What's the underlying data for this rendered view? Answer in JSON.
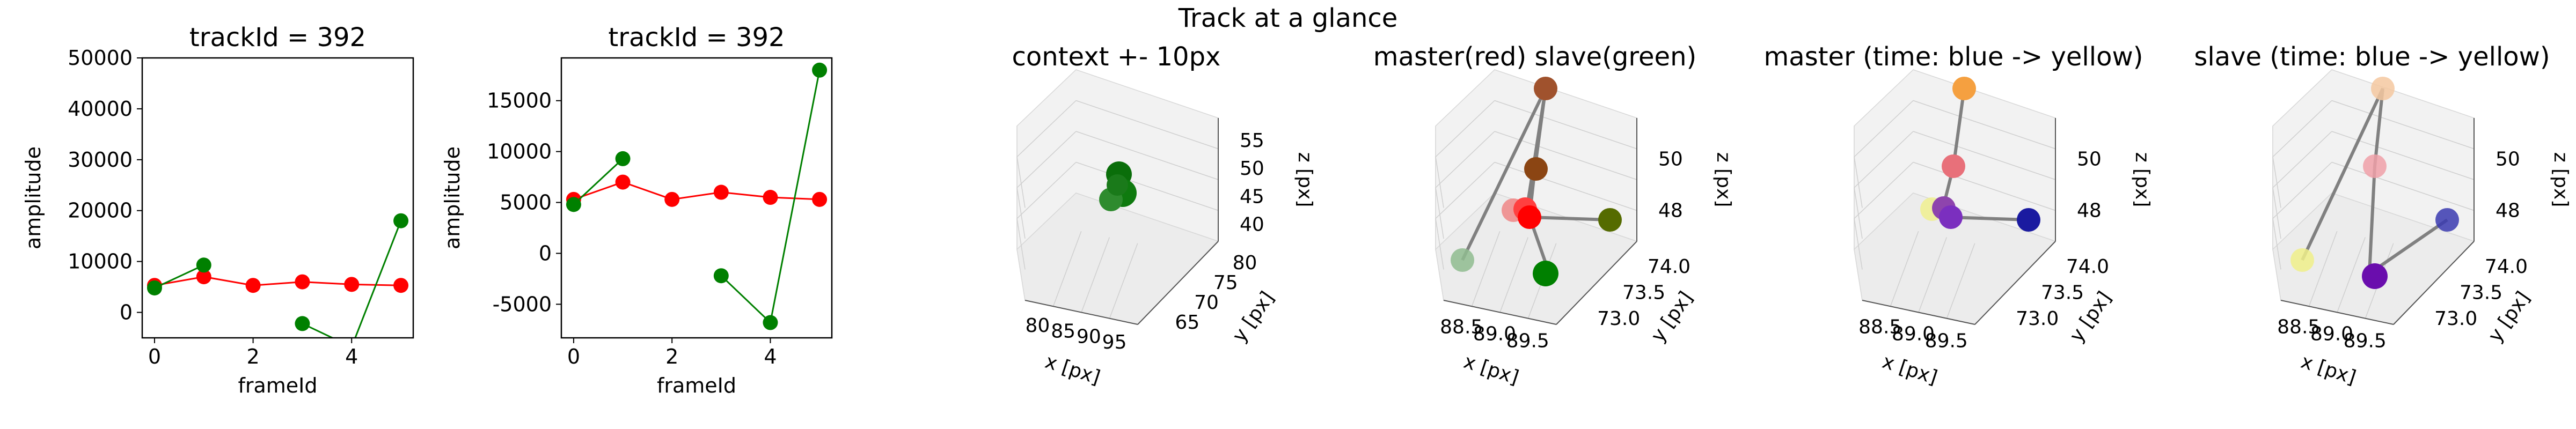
{
  "figure": {
    "suptitle": "Track at a glance"
  },
  "colors": {
    "red": "#ff0000",
    "green": "#008000",
    "pane": "#f2f2f2",
    "pane_edge": "#d8d8d8",
    "grid": "#cfcfcf",
    "line3d": "#808080"
  },
  "chart_data": [
    {
      "type": "line",
      "title": "trackId = 392",
      "xlabel": "frameId",
      "ylabel": "amplitude",
      "xlim": [
        -0.25,
        5.25
      ],
      "ylim": [
        -5000,
        50000
      ],
      "xticks": [
        0,
        2,
        4
      ],
      "yticks": [
        0,
        10000,
        20000,
        30000,
        40000,
        50000
      ],
      "series": [
        {
          "color": "red",
          "x": [
            0,
            1,
            2,
            3,
            4,
            5
          ],
          "y": [
            5300,
            7000,
            5300,
            6000,
            5500,
            5300
          ]
        },
        {
          "color": "green",
          "segments": [
            {
              "x": [
                0,
                1
              ],
              "y": [
                4800,
                9300
              ]
            },
            {
              "x": [
                3,
                4,
                5
              ],
              "y": [
                -2200,
                -6800,
                18000
              ]
            }
          ]
        }
      ]
    },
    {
      "type": "line",
      "title": "trackId = 392",
      "xlabel": "frameId",
      "ylabel": "amplitude",
      "xlim": [
        -0.25,
        5.25
      ],
      "ylim": [
        -8300,
        19200
      ],
      "xticks": [
        0,
        2,
        4
      ],
      "yticks": [
        -5000,
        0,
        5000,
        10000,
        15000
      ],
      "series": [
        {
          "color": "red",
          "x": [
            0,
            1,
            2,
            3,
            4,
            5
          ],
          "y": [
            5300,
            7000,
            5300,
            6000,
            5500,
            5300
          ]
        },
        {
          "color": "green",
          "segments": [
            {
              "x": [
                0,
                1
              ],
              "y": [
                4800,
                9300
              ]
            },
            {
              "x": [
                3,
                4,
                5
              ],
              "y": [
                -2200,
                -6800,
                18000
              ]
            }
          ]
        }
      ]
    },
    {
      "type": "scatter",
      "title": "context +- 10px",
      "xlabel": "x [px]",
      "ylabel": "y [px]",
      "zlabel": "z [px]",
      "xticks": [
        "80",
        "85",
        "90",
        "95"
      ],
      "yticks": [
        "65",
        "70",
        "75",
        "80"
      ],
      "zticks": [
        "40",
        "45",
        "50",
        "55"
      ]
    },
    {
      "type": "scatter",
      "title": "master(red) slave(green)",
      "xlabel": "x [px]",
      "ylabel": "y [px]",
      "zlabel": "z [px]",
      "xticks": [
        "88.5",
        "89.0",
        "89.5"
      ],
      "yticks": [
        "73.0",
        "73.5",
        "74.0"
      ],
      "zticks": [
        "48",
        "50"
      ]
    },
    {
      "type": "scatter",
      "title": "master (time: blue -> yellow)",
      "xlabel": "x [px]",
      "ylabel": "y [px]",
      "zlabel": "z [px]",
      "xticks": [
        "88.5",
        "89.0",
        "89.5"
      ],
      "yticks": [
        "73.0",
        "73.5",
        "74.0"
      ],
      "zticks": [
        "48",
        "50"
      ]
    },
    {
      "type": "scatter",
      "title": "slave (time: blue -> yellow)",
      "xlabel": "x [px]",
      "ylabel": "y [px]",
      "zlabel": "z [px]",
      "xticks": [
        "88.5",
        "89.0",
        "89.5"
      ],
      "yticks": [
        "73.0",
        "73.5",
        "74.0"
      ],
      "zticks": [
        "48",
        "50"
      ]
    }
  ]
}
